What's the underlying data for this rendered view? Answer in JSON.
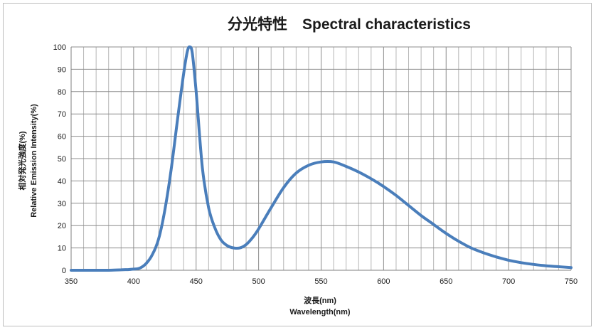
{
  "chart_data": {
    "type": "line",
    "title": "分光特性　Spectral characteristics",
    "xlabel_line1": "波長(nm)",
    "xlabel_line2": "Wavelength(nm)",
    "ylabel_line1": "相対発光強度(%)",
    "ylabel_line2": "Relative Emission Intensity(%)",
    "xlim": [
      350,
      750
    ],
    "ylim": [
      0,
      100
    ],
    "xticks": [
      350,
      400,
      450,
      500,
      550,
      600,
      650,
      700,
      750
    ],
    "yticks": [
      0,
      10,
      20,
      30,
      40,
      50,
      60,
      70,
      80,
      90,
      100
    ],
    "grid": true,
    "color": "#4a7ebb",
    "series": [
      {
        "x": [
          350,
          360,
          370,
          380,
          390,
          395,
          400,
          405,
          410,
          415,
          420,
          425,
          430,
          435,
          440,
          443,
          445,
          447,
          450,
          455,
          460,
          465,
          470,
          475,
          480,
          485,
          490,
          495,
          500,
          510,
          520,
          530,
          540,
          550,
          560,
          570,
          580,
          590,
          600,
          610,
          620,
          630,
          640,
          650,
          660,
          670,
          680,
          690,
          700,
          710,
          720,
          730,
          740,
          750
        ],
        "y": [
          0,
          0,
          0,
          0,
          0.2,
          0.3,
          0.5,
          1,
          3,
          7,
          14,
          27,
          45,
          67,
          88,
          98,
          100,
          97,
          80,
          46,
          28,
          19,
          13.5,
          11,
          10,
          10,
          11.5,
          14.5,
          18.5,
          28,
          37,
          43.5,
          47,
          48.5,
          48.5,
          46.5,
          44,
          41,
          37.5,
          33.5,
          29,
          24.5,
          20.5,
          16.5,
          13,
          10,
          7.8,
          6,
          4.5,
          3.4,
          2.6,
          2,
          1.6,
          1.2
        ]
      }
    ]
  }
}
